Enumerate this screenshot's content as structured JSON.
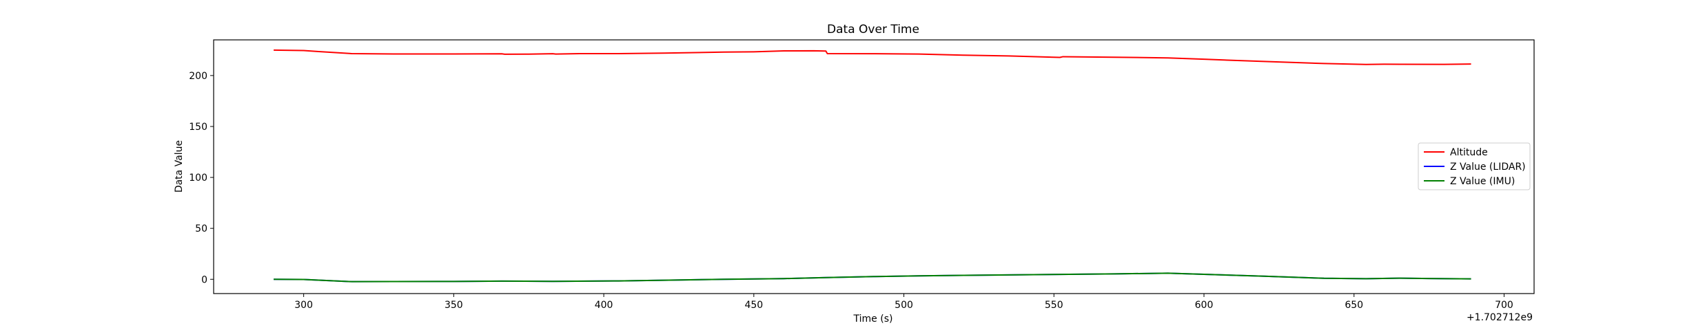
{
  "chart_data": {
    "type": "line",
    "title": "Data Over Time",
    "xlabel": "Time (s)",
    "ylabel": "Data Value",
    "x_offset_label": "+1.702712e9",
    "xlim": [
      270,
      710
    ],
    "ylim": [
      -14,
      235
    ],
    "x_ticks": [
      300,
      350,
      400,
      450,
      500,
      550,
      600,
      650,
      700
    ],
    "y_ticks": [
      0,
      50,
      100,
      150,
      200
    ],
    "legend_position": "center-right",
    "series": [
      {
        "name": "Altitude",
        "color": "#ff0000",
        "x": [
          290,
          300,
          305,
          316,
          330,
          350,
          366,
          367,
          375,
          383,
          384,
          392,
          405,
          420,
          440,
          450,
          460,
          470,
          474,
          474.5,
          490,
          505,
          520,
          535,
          552,
          553,
          570,
          588,
          600,
          620,
          640,
          654,
          660,
          680,
          689
        ],
        "y": [
          225,
          224.5,
          223.5,
          221.5,
          221.2,
          221.2,
          221.3,
          220.9,
          221.0,
          221.4,
          221.1,
          221.5,
          221.5,
          222.0,
          223.0,
          223.3,
          224.2,
          224.3,
          224.0,
          221.5,
          221.4,
          221.1,
          220.0,
          219.2,
          217.8,
          218.5,
          218.0,
          217.3,
          216.0,
          213.8,
          211.8,
          210.9,
          211.1,
          211.0,
          211.3
        ]
      },
      {
        "name": "Z Value (LIDAR)",
        "color": "#0000ff",
        "x": [
          290,
          300,
          305,
          316,
          330,
          350,
          366,
          383,
          405,
          420,
          440,
          460,
          474,
          490,
          505,
          520,
          552,
          570,
          588,
          600,
          620,
          640,
          654,
          665,
          675,
          689
        ],
        "y": [
          0.0,
          -0.2,
          -0.8,
          -2.3,
          -2.2,
          -2.1,
          -1.8,
          -2.0,
          -1.6,
          -0.9,
          0.0,
          0.7,
          1.7,
          2.7,
          3.4,
          3.9,
          4.8,
          5.3,
          6.0,
          4.9,
          3.0,
          1.0,
          0.6,
          1.1,
          0.8,
          0.4
        ]
      },
      {
        "name": "Z Value (IMU)",
        "color": "#008000",
        "x": [
          290,
          300,
          305,
          316,
          330,
          350,
          366,
          383,
          405,
          420,
          440,
          460,
          474,
          490,
          505,
          520,
          552,
          570,
          588,
          600,
          620,
          640,
          654,
          665,
          675,
          689
        ],
        "y": [
          0.0,
          -0.2,
          -0.8,
          -2.3,
          -2.2,
          -2.1,
          -1.8,
          -2.0,
          -1.6,
          -0.9,
          0.0,
          0.7,
          1.7,
          2.7,
          3.4,
          3.9,
          4.8,
          5.3,
          6.0,
          4.9,
          3.0,
          1.0,
          0.6,
          1.1,
          0.8,
          0.4
        ]
      }
    ]
  }
}
